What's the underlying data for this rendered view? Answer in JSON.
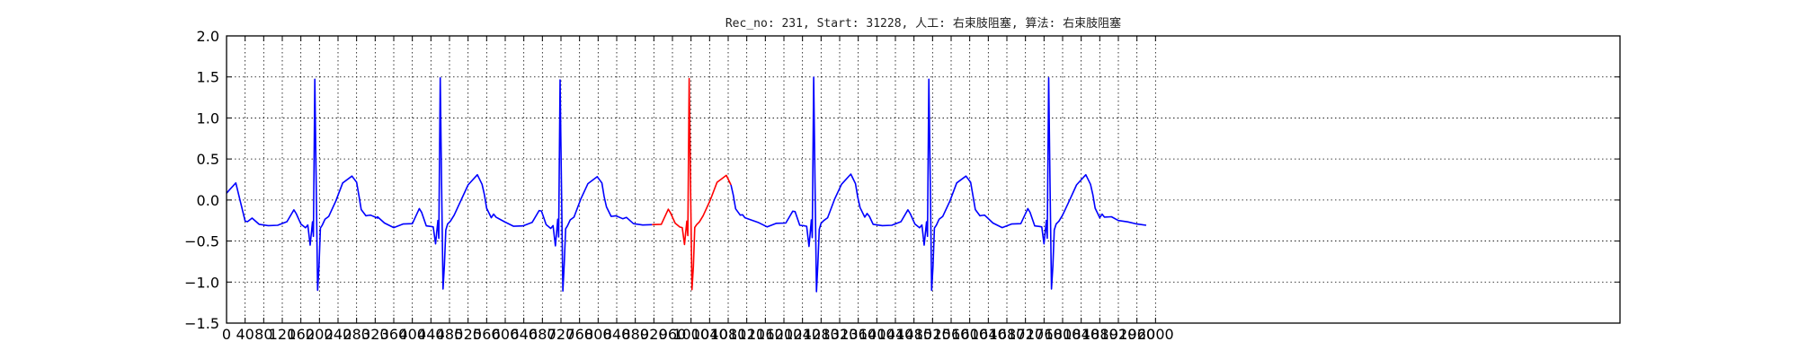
{
  "chart_data": {
    "type": "line",
    "title": "Rec_no: 231, Start: 31228, 人工: 右束肢阻塞, 算法: 右束肢阻塞",
    "xlabel": "",
    "ylabel": "",
    "xlim": [
      0,
      3000
    ],
    "ylim": [
      -1.5,
      2.0
    ],
    "yticks": [
      -1.5,
      -1.0,
      -0.5,
      0.0,
      0.5,
      1.0,
      1.5,
      2.0
    ],
    "ytick_labels": [
      "−1.5",
      "−1.0",
      "−0.5",
      "0.0",
      "0.5",
      "1.0",
      "1.5",
      "2.0"
    ],
    "xtick_step": 40,
    "xtick_max": 2000,
    "grid": true,
    "grid_style": "dotted",
    "colors": {
      "normal": "#0000ff",
      "highlight": "#ff0000",
      "grid": "#000000"
    },
    "beat_period": 272,
    "r_peaks": [
      190,
      460,
      718,
      996,
      1264,
      1512,
      1770
    ],
    "highlight_range": [
      920,
      1090
    ],
    "signal_end": 2000,
    "series": [
      {
        "name": "",
        "color": "#0000ff",
        "beat_template": {
          "x_offset": [
            -190,
            -170,
            -150,
            -145,
            -135,
            -120,
            -100,
            -80,
            -60,
            -45,
            -40,
            -30,
            -20,
            -15,
            -10,
            -5,
            -3,
            0,
            3,
            6,
            9,
            12,
            16,
            22,
            30,
            45,
            60,
            80,
            90,
            95,
            100,
            110,
            115,
            120,
            135,
            150,
            170,
            190,
            210
          ],
          "y": [
            0.1,
            0.2,
            -0.25,
            -0.28,
            -0.22,
            -0.28,
            -0.32,
            -0.3,
            -0.28,
            -0.12,
            -0.15,
            -0.3,
            -0.33,
            -0.32,
            -0.55,
            -0.25,
            -0.45,
            1.48,
            0.2,
            -1.1,
            -0.8,
            -0.35,
            -0.3,
            -0.25,
            -0.2,
            0.0,
            0.2,
            0.3,
            0.2,
            0.05,
            -0.1,
            -0.2,
            -0.18,
            -0.2,
            -0.22,
            -0.25,
            -0.25,
            -0.3,
            -0.3
          ]
        }
      }
    ]
  }
}
